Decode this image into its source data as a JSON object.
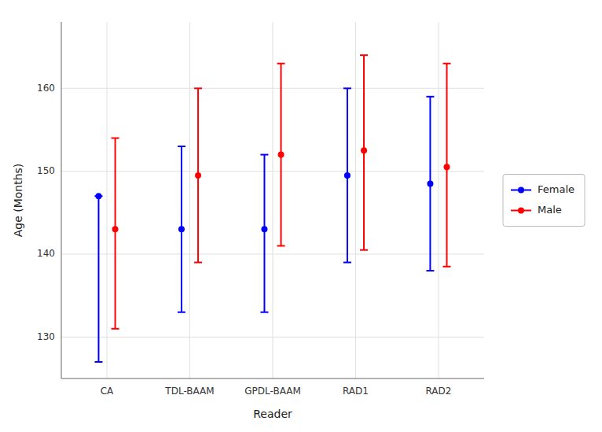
{
  "chart_data": {
    "type": "errorbar",
    "xlabel": "Reader",
    "ylabel": "Age (Months)",
    "categories": [
      "CA",
      "TDL-BAAM",
      "GPDL-BAAM",
      "RAD1",
      "RAD2"
    ],
    "series": [
      {
        "name": "Female",
        "color": "#0000FF",
        "marker": "circle",
        "values": [
          147,
          143,
          143,
          149.5,
          148.5
        ],
        "lower": [
          127,
          133,
          133,
          139,
          138
        ],
        "upper": [
          147,
          153,
          152,
          160,
          159
        ]
      },
      {
        "name": "Male",
        "color": "#FF0000",
        "marker": "circle",
        "values": [
          143,
          149.5,
          152,
          152.5,
          150.5
        ],
        "lower": [
          131,
          139,
          141,
          140.5,
          138.5
        ],
        "upper": [
          154,
          160,
          163,
          164,
          163
        ]
      }
    ],
    "ylim": [
      125,
      168
    ],
    "yticks": [
      130,
      140,
      150,
      160
    ],
    "grid": true,
    "legend": "right"
  }
}
